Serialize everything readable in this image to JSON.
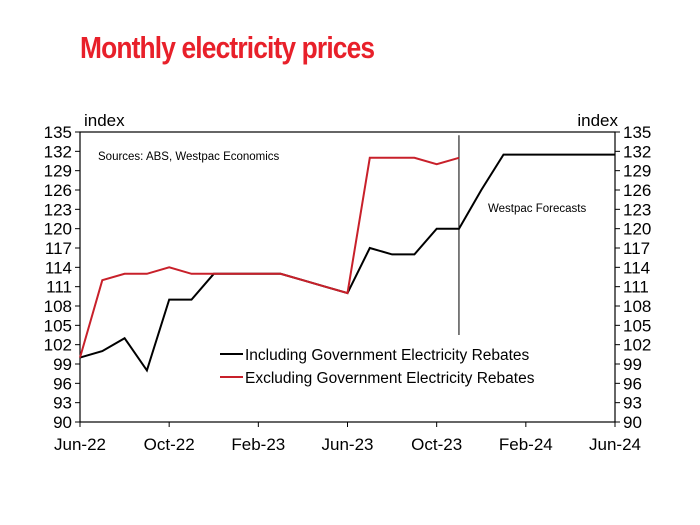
{
  "title": "Monthly electricity prices",
  "colors": {
    "title": "#e8202a",
    "including": "#000000",
    "excluding": "#c8202a"
  },
  "chart_data": {
    "type": "line",
    "left_unit": "index",
    "right_unit": "index",
    "source": "Sources: ABS, Westpac Economics",
    "forecast_label": "Westpac Forecasts",
    "forecast_start": "Nov-23",
    "ylim": [
      90,
      135
    ],
    "yticks": [
      90,
      93,
      96,
      99,
      102,
      105,
      108,
      111,
      114,
      117,
      120,
      123,
      126,
      129,
      132,
      135
    ],
    "xtick_labels": [
      "Jun-22",
      "Oct-22",
      "Feb-23",
      "Jun-23",
      "Oct-23",
      "Feb-24",
      "Jun-24"
    ],
    "x": [
      "Jun-22",
      "Jul-22",
      "Aug-22",
      "Sep-22",
      "Oct-22",
      "Nov-22",
      "Dec-22",
      "Jan-23",
      "Feb-23",
      "Mar-23",
      "Apr-23",
      "May-23",
      "Jun-23",
      "Jul-23",
      "Aug-23",
      "Sep-23",
      "Oct-23",
      "Nov-23",
      "Dec-23",
      "Jan-24",
      "Feb-24",
      "Mar-24",
      "Apr-24",
      "May-24",
      "Jun-24"
    ],
    "grid": false,
    "legend": "bottom-center",
    "series": [
      {
        "name": "Including Government Electricity Rebates",
        "color": "#000000",
        "values": [
          100,
          101,
          103,
          98,
          109,
          109,
          113,
          113,
          113,
          113,
          112,
          111,
          110,
          117,
          116,
          116,
          120,
          120,
          126,
          131.5,
          131.5,
          131.5,
          131.5,
          131.5,
          131.5
        ]
      },
      {
        "name": "Excluding Government Electricity Rebates",
        "color": "#c8202a",
        "values": [
          100,
          112,
          113,
          113,
          114,
          113,
          113,
          113,
          113,
          113,
          112,
          111,
          110,
          131,
          131,
          131,
          130,
          131,
          null,
          null,
          null,
          null,
          null,
          null,
          null
        ]
      }
    ]
  }
}
